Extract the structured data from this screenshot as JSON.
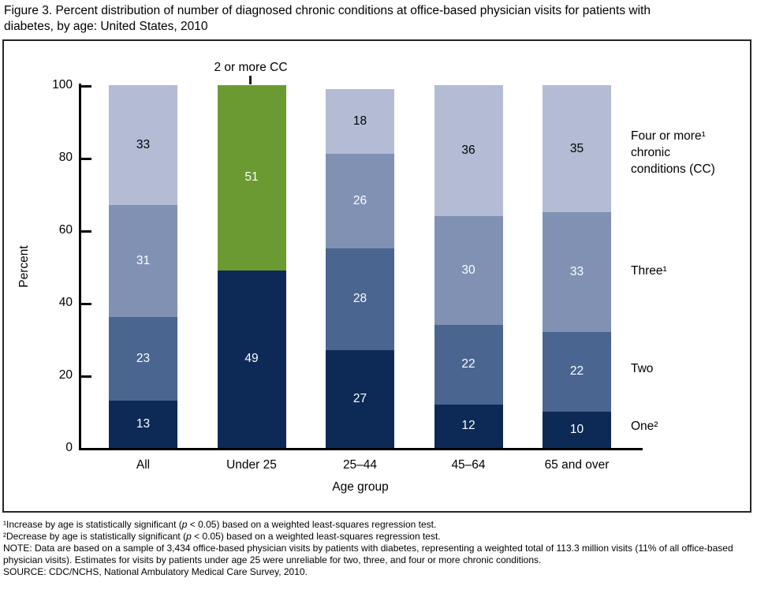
{
  "title": "Figure 3. Percent distribution of number of diagnosed chronic conditions at office-based physician visits for patients with diabetes, by age: United States, 2010",
  "chart_data": {
    "type": "bar",
    "subtype": "stacked-percent",
    "title": "Figure 3. Percent distribution of number of diagnosed chronic conditions at office-based physician visits for patients with diabetes, by age: United States, 2010",
    "categories": [
      "All",
      "Under 25",
      "25–44",
      "45–64",
      "65 and over"
    ],
    "series": [
      {
        "name": "One",
        "legend": "One²",
        "color": "#0d2a56",
        "label_color": "#ffffff",
        "values": [
          13,
          49,
          27,
          12,
          10
        ]
      },
      {
        "name": "Two",
        "legend": "Two",
        "color": "#4a6590",
        "label_color": "#ffffff",
        "values": [
          23,
          null,
          28,
          22,
          22
        ]
      },
      {
        "name": "Three",
        "legend": "Three¹",
        "color": "#8091b4",
        "label_color": "#ffffff",
        "values": [
          31,
          null,
          26,
          30,
          33
        ]
      },
      {
        "name": "Four or more chronic conditions (CC)",
        "legend": "Four or more¹\nchronic\nconditions (CC)",
        "color": "#b3bbd5",
        "label_color": "#000000",
        "values": [
          33,
          null,
          18,
          36,
          35
        ]
      },
      {
        "name": "2 or more CC",
        "legend": "",
        "color": "#6a9a31",
        "label_color": "#ffffff",
        "values": [
          null,
          51,
          null,
          null,
          null
        ]
      }
    ],
    "annotation": "2 or more CC",
    "xlabel": "Age group",
    "ylabel": "Percent",
    "yticks": [
      0,
      20,
      40,
      60,
      80,
      100
    ],
    "ylim": [
      0,
      100
    ],
    "grid": false,
    "legend_position": "right"
  },
  "footnotes": [
    "¹Increase by age is statistically significant (p < 0.05) based on a weighted least-squares regression test.",
    "²Decrease by age is statistically significant (p < 0.05) based on a weighted least-squares regression test.",
    "NOTE: Data are based on a sample of 3,434 office-based physician visits by patients with diabetes, representing a weighted total of 113.3 million visits (11% of all office-based physician visits). Estimates for visits by patients under age 25 were unreliable for two, three, and four or more chronic conditions.",
    "SOURCE: CDC/NCHS, National Ambulatory Medical Care Survey, 2010."
  ]
}
